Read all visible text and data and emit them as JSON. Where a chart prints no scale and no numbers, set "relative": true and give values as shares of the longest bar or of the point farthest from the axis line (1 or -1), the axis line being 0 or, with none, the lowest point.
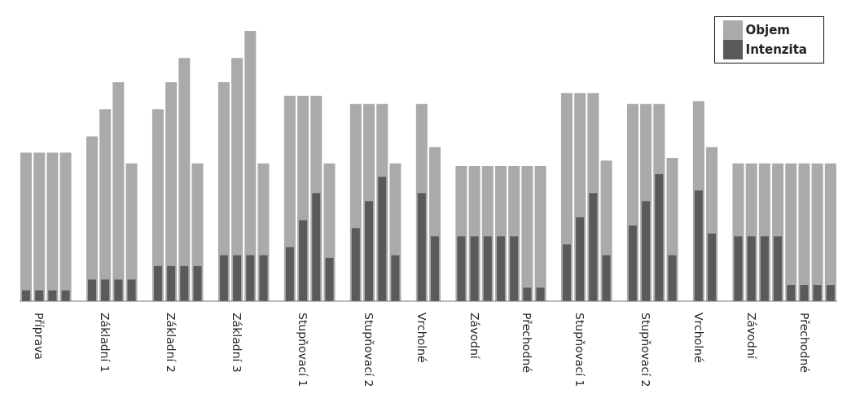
{
  "chart_data": {
    "type": "bar",
    "relative": true,
    "legend": "top right",
    "categories": [
      null,
      "Příprava",
      null,
      null,
      null,
      null,
      "Základní 1",
      null,
      null,
      null,
      null,
      "Základní 2",
      null,
      null,
      null,
      null,
      "Základní 3",
      null,
      null,
      null,
      null,
      "Stupňovací 1",
      null,
      null,
      null,
      null,
      "Stupňovací 2",
      null,
      null,
      null,
      "Vrcholné",
      null,
      null,
      null,
      "Závodní",
      null,
      null,
      null,
      "Přechodné",
      null,
      null,
      null,
      "Stupňovací 1",
      null,
      null,
      null,
      null,
      "Stupňovací 2",
      null,
      null,
      null,
      "Vrcholné",
      null,
      null,
      null,
      "Závodní",
      null,
      null,
      null,
      "Přechodné",
      null,
      null
    ],
    "series": [
      {
        "name": "Objem",
        "color": "#a9aaac",
        "values": [
          0.55,
          0.55,
          0.55,
          0.55,
          null,
          0.61,
          0.71,
          0.81,
          0.51,
          null,
          0.71,
          0.81,
          0.9,
          0.51,
          null,
          0.81,
          0.9,
          1,
          0.51,
          null,
          0.76,
          0.76,
          0.76,
          0.51,
          null,
          0.73,
          0.73,
          0.73,
          0.51,
          null,
          0.73,
          0.57,
          null,
          0.5,
          0.5,
          0.5,
          0.5,
          0.5,
          0.5,
          0.5,
          null,
          0.77,
          0.77,
          0.77,
          0.52,
          null,
          0.73,
          0.73,
          0.73,
          0.53,
          null,
          0.74,
          0.57,
          null,
          0.51,
          0.51,
          0.51,
          0.51,
          0.51,
          0.51,
          0.51,
          0.51
        ]
      },
      {
        "name": "Intenzita",
        "color": "#5a5a5c",
        "values": [
          0.04,
          0.04,
          0.04,
          0.04,
          null,
          0.08,
          0.08,
          0.08,
          0.08,
          null,
          0.13,
          0.13,
          0.13,
          0.13,
          null,
          0.17,
          0.17,
          0.17,
          0.17,
          null,
          0.2,
          0.3,
          0.4,
          0.16,
          null,
          0.27,
          0.37,
          0.46,
          0.17,
          null,
          0.4,
          0.24,
          null,
          0.24,
          0.24,
          0.24,
          0.24,
          0.24,
          0.05,
          0.05,
          null,
          0.21,
          0.31,
          0.4,
          0.17,
          null,
          0.28,
          0.37,
          0.47,
          0.17,
          null,
          0.41,
          0.25,
          null,
          0.24,
          0.24,
          0.24,
          0.24,
          0.06,
          0.06,
          0.06,
          0.06
        ]
      }
    ]
  }
}
